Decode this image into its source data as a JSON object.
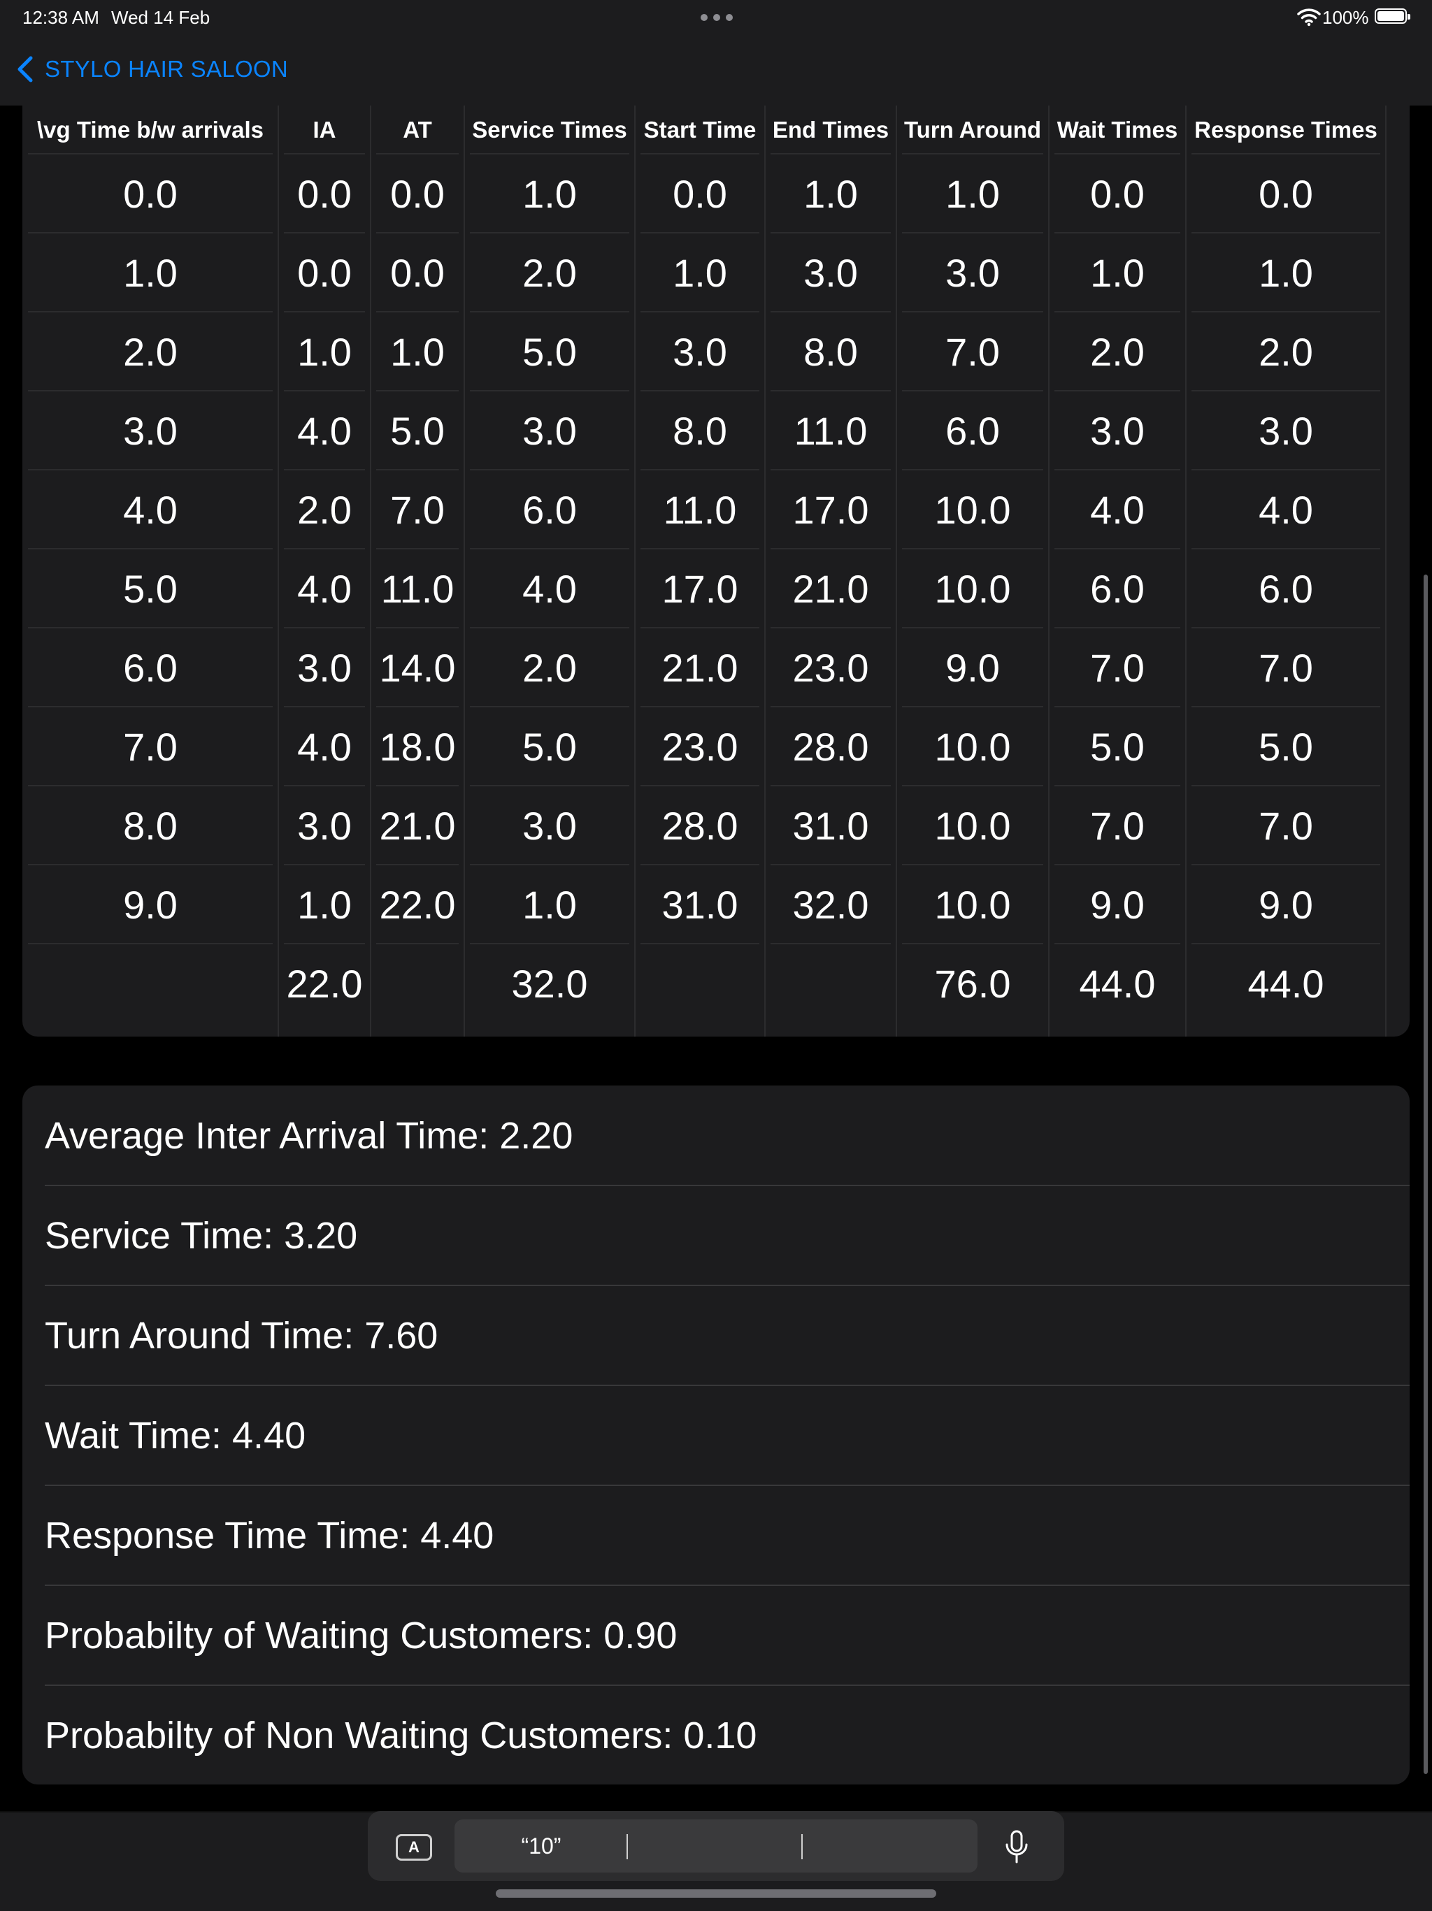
{
  "status_bar": {
    "time": "12:38 AM",
    "date": "Wed 14 Feb",
    "battery": "100%"
  },
  "nav": {
    "back_label": "STYLO HAIR SALOON"
  },
  "table": {
    "headers": [
      "\\vg Time b/w arrivals",
      "IA",
      "AT",
      "Service Times",
      "Start Time",
      "End Times",
      "Turn Around",
      "Wait Times",
      "Response Times"
    ],
    "rows": [
      [
        "0.0",
        "0.0",
        "0.0",
        "1.0",
        "0.0",
        "1.0",
        "1.0",
        "0.0",
        "0.0"
      ],
      [
        "1.0",
        "0.0",
        "0.0",
        "2.0",
        "1.0",
        "3.0",
        "3.0",
        "1.0",
        "1.0"
      ],
      [
        "2.0",
        "1.0",
        "1.0",
        "5.0",
        "3.0",
        "8.0",
        "7.0",
        "2.0",
        "2.0"
      ],
      [
        "3.0",
        "4.0",
        "5.0",
        "3.0",
        "8.0",
        "11.0",
        "6.0",
        "3.0",
        "3.0"
      ],
      [
        "4.0",
        "2.0",
        "7.0",
        "6.0",
        "11.0",
        "17.0",
        "10.0",
        "4.0",
        "4.0"
      ],
      [
        "5.0",
        "4.0",
        "11.0",
        "4.0",
        "17.0",
        "21.0",
        "10.0",
        "6.0",
        "6.0"
      ],
      [
        "6.0",
        "3.0",
        "14.0",
        "2.0",
        "21.0",
        "23.0",
        "9.0",
        "7.0",
        "7.0"
      ],
      [
        "7.0",
        "4.0",
        "18.0",
        "5.0",
        "23.0",
        "28.0",
        "10.0",
        "5.0",
        "5.0"
      ],
      [
        "8.0",
        "3.0",
        "21.0",
        "3.0",
        "28.0",
        "31.0",
        "10.0",
        "7.0",
        "7.0"
      ],
      [
        "9.0",
        "1.0",
        "22.0",
        "1.0",
        "31.0",
        "32.0",
        "10.0",
        "9.0",
        "9.0"
      ]
    ],
    "totals": [
      "",
      "22.0",
      "",
      "32.0",
      "",
      "",
      "76.0",
      "44.0",
      "44.0"
    ]
  },
  "summary": [
    "Average Inter Arrival Time: 2.20",
    "Service Time: 3.20",
    "Turn Around Time: 7.60",
    "Wait Time: 4.40",
    "Response Time Time: 4.40",
    "Probabilty of Waiting Customers: 0.90",
    "Probabilty of Non Waiting Customers: 0.10"
  ],
  "keyboard": {
    "format_button": "A",
    "suggestion": "“10”"
  }
}
